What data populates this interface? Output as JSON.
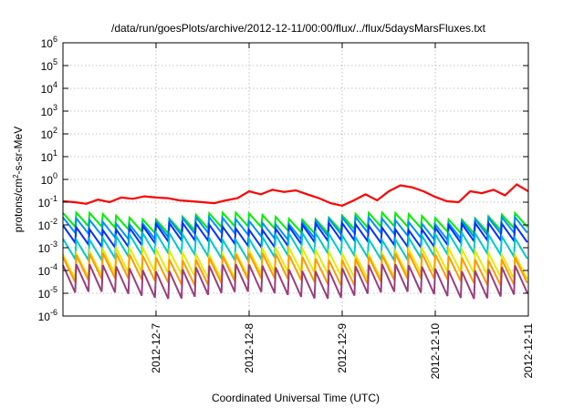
{
  "chart_data": {
    "type": "line",
    "title": "/data/run/goesPlots/archive/2012-12-11/00:00/flux/../flux/5daysMarsFluxes.txt",
    "xlabel": "Coordinated Universal Time (UTC)",
    "ylabel": {
      "prefix": "protons/cm",
      "sup": "2",
      "suffix": "-s-sr-MeV"
    },
    "y_scale": "log",
    "ylim": [
      1e-06,
      1000000.0
    ],
    "y_ticks": [
      {
        "base": "10",
        "exp": "6",
        "value": 1000000.0
      },
      {
        "base": "10",
        "exp": "5",
        "value": 100000.0
      },
      {
        "base": "10",
        "exp": "4",
        "value": 10000.0
      },
      {
        "base": "10",
        "exp": "3",
        "value": 1000.0
      },
      {
        "base": "10",
        "exp": "2",
        "value": 100.0
      },
      {
        "base": "10",
        "exp": "1",
        "value": 10.0
      },
      {
        "base": "10",
        "exp": "0",
        "value": 1.0
      },
      {
        "base": "10",
        "exp": "-1",
        "value": 0.1
      },
      {
        "base": "10",
        "exp": "-2",
        "value": 0.01
      },
      {
        "base": "10",
        "exp": "-3",
        "value": 0.001
      },
      {
        "base": "10",
        "exp": "-4",
        "value": 0.0001
      },
      {
        "base": "10",
        "exp": "-5",
        "value": 1e-05
      },
      {
        "base": "10",
        "exp": "-6",
        "value": 1e-06
      }
    ],
    "xlim": [
      "2012-12-06T00:00",
      "2012-12-11T00:00"
    ],
    "x_ticks": [
      "2012-12-7",
      "2012-12-8",
      "2012-12-9",
      "2012-12-10",
      "2012-12-11"
    ],
    "grid": true,
    "legend": "none",
    "series": [
      {
        "color": "#ff0000",
        "width": 2.2,
        "x": [
          "2012-12-06T00:00",
          "2012-12-06T03:00",
          "2012-12-06T06:00",
          "2012-12-06T09:00",
          "2012-12-06T12:00",
          "2012-12-06T15:00",
          "2012-12-06T18:00",
          "2012-12-06T21:00",
          "2012-12-07T00:00",
          "2012-12-07T03:00",
          "2012-12-07T06:00",
          "2012-12-07T09:00",
          "2012-12-07T12:00",
          "2012-12-07T15:00",
          "2012-12-07T18:00",
          "2012-12-07T21:00",
          "2012-12-08T00:00",
          "2012-12-08T03:00",
          "2012-12-08T06:00",
          "2012-12-08T09:00",
          "2012-12-08T12:00",
          "2012-12-08T15:00",
          "2012-12-08T18:00",
          "2012-12-08T21:00",
          "2012-12-09T00:00",
          "2012-12-09T03:00",
          "2012-12-09T06:00",
          "2012-12-09T09:00",
          "2012-12-09T12:00",
          "2012-12-09T15:00",
          "2012-12-09T18:00",
          "2012-12-09T21:00",
          "2012-12-10T00:00",
          "2012-12-10T03:00",
          "2012-12-10T06:00",
          "2012-12-10T09:00",
          "2012-12-10T12:00",
          "2012-12-10T15:00",
          "2012-12-10T18:00",
          "2012-12-10T21:00",
          "2012-12-11T00:00"
        ],
        "values": [
          0.11,
          0.1,
          0.085,
          0.13,
          0.1,
          0.16,
          0.14,
          0.18,
          0.16,
          0.15,
          0.12,
          0.11,
          0.1,
          0.09,
          0.12,
          0.15,
          0.3,
          0.22,
          0.35,
          0.28,
          0.33,
          0.22,
          0.15,
          0.09,
          0.07,
          0.12,
          0.22,
          0.12,
          0.3,
          0.55,
          0.45,
          0.3,
          0.17,
          0.11,
          0.1,
          0.3,
          0.25,
          0.35,
          0.2,
          0.6,
          0.3
        ]
      },
      {
        "color": "#00ee00",
        "width": 2,
        "pattern_base": 0.013,
        "amplitude": 2.0
      },
      {
        "color": "#0090ff",
        "width": 2,
        "pattern_base": 0.0075,
        "amplitude": 2.2
      },
      {
        "color": "#0030ff",
        "width": 2,
        "pattern_base": 0.0038,
        "amplitude": 2.4
      },
      {
        "color": "#00c8c8",
        "width": 2,
        "pattern_base": 0.0012,
        "amplitude": 2.8
      },
      {
        "color": "#e8e800",
        "width": 2,
        "pattern_base": 0.00022,
        "amplitude": 3.4
      },
      {
        "color": "#ff9900",
        "width": 2,
        "pattern_base": 0.00012,
        "amplitude": 3.6
      },
      {
        "color": "#9a3e7c",
        "width": 2,
        "pattern_base": 3.5e-05,
        "amplitude": 4.0
      }
    ],
    "sawtooth": {
      "cycles_per_day": 7,
      "start": "2012-12-06T00:00",
      "end": "2012-12-11T00:00"
    }
  }
}
